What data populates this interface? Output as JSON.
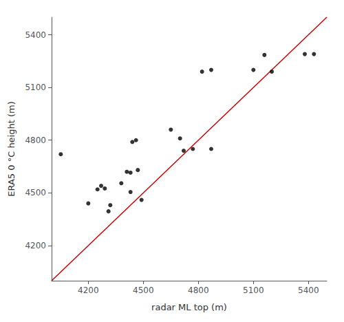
{
  "chart_data": {
    "type": "scatter",
    "xlabel": "radar ML top (m)",
    "ylabel": "ERA5 0 °C height (m)",
    "series": [
      {
        "type": "scatter",
        "color": "#000000",
        "x": [
          4050,
          4200,
          4250,
          4270,
          4290,
          4310,
          4320,
          4380,
          4410,
          4430,
          4430,
          4440,
          4460,
          4470,
          4490,
          4650,
          4700,
          4720,
          4770,
          4820,
          4870,
          4870,
          5100,
          5160,
          5200,
          5380,
          5430
        ],
        "values": [
          4720,
          4440,
          4520,
          4540,
          4525,
          4395,
          4430,
          4555,
          4620,
          4615,
          4505,
          4790,
          4800,
          4630,
          4460,
          4860,
          4810,
          4740,
          4750,
          5190,
          5200,
          4750,
          5200,
          5285,
          5190,
          5290,
          5290
        ]
      },
      {
        "type": "line",
        "color": "#cc0000",
        "x": [
          4000,
          5500
        ],
        "values": [
          4000,
          5500
        ]
      }
    ],
    "xlim": [
      4000,
      5500
    ],
    "ylim": [
      4000,
      5500
    ],
    "xticks": [
      4200,
      4500,
      4800,
      5100,
      5400
    ],
    "yticks": [
      4200,
      4500,
      4800,
      5100,
      5400
    ],
    "grid": false
  }
}
